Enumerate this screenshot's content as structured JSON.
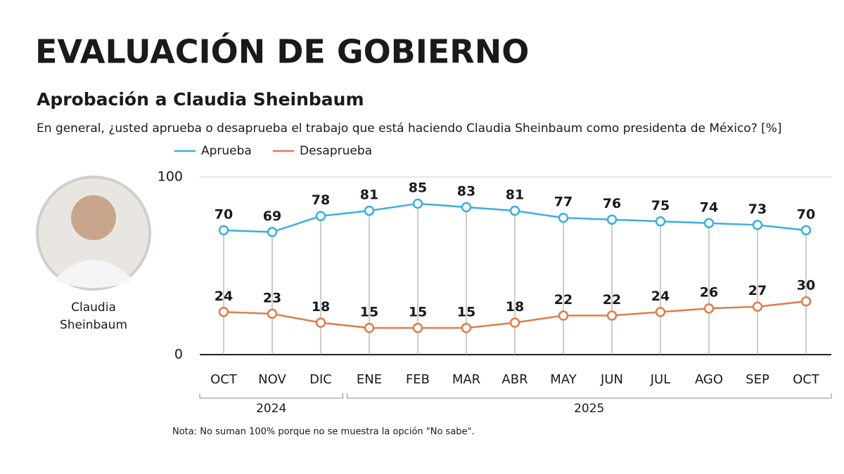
{
  "chart_data": {
    "type": "line",
    "title": "EVALUACIÓN DE GOBIERNO",
    "subtitle": "Aprobación a Claudia Sheinbaum",
    "question": "En general, ¿usted aprueba o desaprueba el trabajo que está haciendo Claudia Sheinbaum como presidenta de México?  [%]",
    "categories": [
      "OCT",
      "NOV",
      "DIC",
      "ENE",
      "FEB",
      "MAR",
      "ABR",
      "MAY",
      "JUN",
      "JUL",
      "AGO",
      "SEP",
      "OCT"
    ],
    "category_years": [
      "2024",
      "2024",
      "2024",
      "2025",
      "2025",
      "2025",
      "2025",
      "2025",
      "2025",
      "2025",
      "2025",
      "2025",
      "2025"
    ],
    "series": [
      {
        "name": "Aprueba",
        "color": "#3aaee0",
        "values": [
          70,
          69,
          78,
          81,
          85,
          83,
          81,
          77,
          76,
          75,
          74,
          73,
          70
        ]
      },
      {
        "name": "Desaprueba",
        "color": "#e07b4c",
        "values": [
          24,
          23,
          18,
          15,
          15,
          15,
          18,
          22,
          22,
          24,
          26,
          27,
          30
        ]
      }
    ],
    "ylim": [
      0,
      100
    ],
    "yticks": [
      0,
      100
    ],
    "grid": true,
    "photo_caption": [
      "Claudia",
      "Sheinbaum"
    ],
    "note": "Nota: No suman 100% porque no se muestra la opción \"No sabe\"."
  }
}
